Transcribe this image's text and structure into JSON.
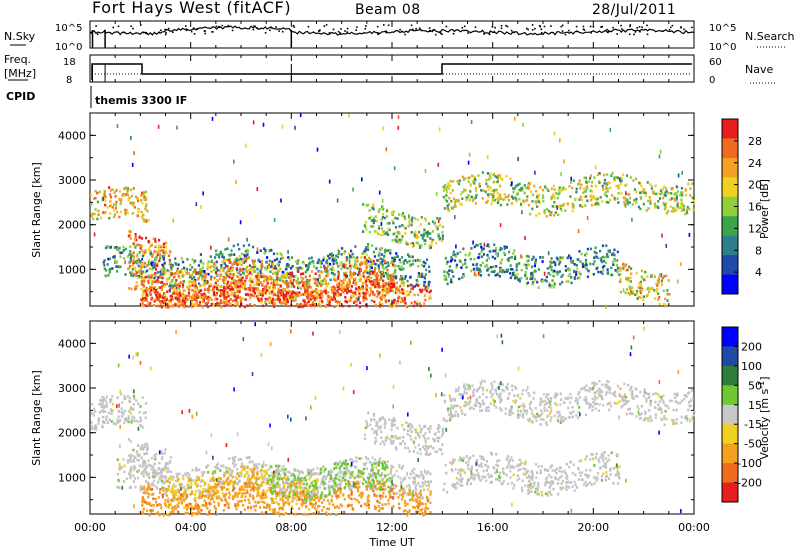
{
  "header": {
    "station": "Fort Hays West (fitACF)",
    "beam": "Beam 08",
    "date": "28/Jul/2011"
  },
  "noise_panel": {
    "left_label": "N.Sky",
    "right_label": "N.Search",
    "left_ticks": [
      "10^5",
      "10^0"
    ],
    "right_ticks": [
      "10^5",
      "10^0"
    ]
  },
  "freq_panel": {
    "left_label_top": "Freq.",
    "left_label_bottom": "[MHz]",
    "left_ticks": [
      "18",
      "8"
    ],
    "right_label": "Nave",
    "right_ticks": [
      "60",
      "0"
    ]
  },
  "cpid_panel": {
    "label": "CPID",
    "program": "themis 3300 IF"
  },
  "time_axis": {
    "title": "Time UT",
    "ticks": [
      "00:00",
      "04:00",
      "08:00",
      "12:00",
      "16:00",
      "20:00",
      "00:00"
    ]
  },
  "colors": {
    "power_scale": [
      "#0000ff",
      "#1f4aa8",
      "#2e7e8c",
      "#3aa64a",
      "#8fcf3a",
      "#f0d020",
      "#f5a020",
      "#f06a20",
      "#e81e1e"
    ],
    "velocity_scale": [
      "#0000ff",
      "#1f4aa8",
      "#2e7e3a",
      "#6ec832",
      "#c8c8c8",
      "#f0d020",
      "#f5a020",
      "#f06a20",
      "#e81e1e"
    ],
    "ground_scatter": "#c0c0c0"
  },
  "chart_data": [
    {
      "type": "heatmap",
      "title": "",
      "xlabel": "Time UT",
      "ylabel": "Slant Range [km]",
      "xlim": [
        0,
        24
      ],
      "ylim": [
        180,
        4500
      ],
      "yticks": [
        "1000",
        "2000",
        "3000",
        "4000"
      ],
      "colorbar": {
        "label": "Power [dB]",
        "ticks": [
          "4",
          "8",
          "12",
          "16",
          "20",
          "24",
          "28"
        ],
        "range": [
          0,
          30
        ]
      },
      "bands": [
        {
          "range": 2400,
          "t_start": 0.0,
          "t_end": 2.3,
          "value": 20
        },
        {
          "range": 1400,
          "t_start": 1.5,
          "t_end": 3.2,
          "value": 24
        },
        {
          "range": 1100,
          "t_start": 0.5,
          "t_end": 13.5,
          "value": 10
        },
        {
          "range": 800,
          "t_start": 1.5,
          "t_end": 12.0,
          "value": 22
        },
        {
          "range": 500,
          "t_start": 2.0,
          "t_end": 13.5,
          "value": 24
        },
        {
          "range": 300,
          "t_start": 2.0,
          "t_end": 12.5,
          "value": 26
        },
        {
          "range": 2000,
          "t_start": 10.8,
          "t_end": 14.0,
          "value": 14
        },
        {
          "range": 2700,
          "t_start": 14.0,
          "t_end": 24.0,
          "value": 16
        },
        {
          "range": 1100,
          "t_start": 14.0,
          "t_end": 21.0,
          "value": 10
        },
        {
          "range": 700,
          "t_start": 21.0,
          "t_end": 23.0,
          "value": 18
        }
      ]
    },
    {
      "type": "heatmap",
      "title": "",
      "xlabel": "Time UT",
      "ylabel": "Slant Range [km]",
      "xlim": [
        0,
        24
      ],
      "ylim": [
        180,
        4500
      ],
      "yticks": [
        "1000",
        "2000",
        "3000",
        "4000"
      ],
      "colorbar": {
        "label": "Velocity [m s-1]",
        "label_main": "Velocity [m s",
        "label_sup": "-1",
        "label_end": "]",
        "ticks": [
          "200",
          "100",
          "50",
          "15",
          "-15",
          "-50",
          "-100",
          "-200"
        ],
        "range": [
          -250,
          250
        ]
      },
      "bands": [
        {
          "range": 2400,
          "t_start": 0.0,
          "t_end": 2.3,
          "value": 0
        },
        {
          "range": 1400,
          "t_start": 1.5,
          "t_end": 3.2,
          "value": 0
        },
        {
          "range": 1000,
          "t_start": 1.0,
          "t_end": 13.5,
          "value": 0
        },
        {
          "range": 800,
          "t_start": 3.0,
          "t_end": 9.0,
          "value": -80
        },
        {
          "range": 500,
          "t_start": 2.0,
          "t_end": 13.5,
          "value": -120
        },
        {
          "range": 1000,
          "t_start": 7.0,
          "t_end": 12.0,
          "value": 40
        },
        {
          "range": 2000,
          "t_start": 10.8,
          "t_end": 14.0,
          "value": 0
        },
        {
          "range": 2700,
          "t_start": 14.0,
          "t_end": 24.0,
          "value": 0
        },
        {
          "range": 1100,
          "t_start": 14.0,
          "t_end": 21.0,
          "value": 0
        }
      ]
    }
  ]
}
